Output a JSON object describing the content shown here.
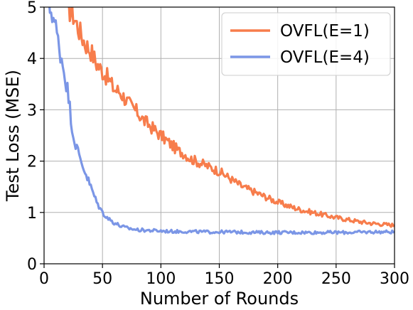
{
  "chart_data": {
    "type": "line",
    "xlabel": "Number of Rounds",
    "ylabel": "Test Loss (MSE)",
    "xlim": [
      0,
      300
    ],
    "ylim": [
      0,
      5
    ],
    "x_ticks": [
      "0",
      "50",
      "100",
      "150",
      "200",
      "250",
      "300"
    ],
    "y_ticks": [
      "0",
      "1",
      "2",
      "3",
      "4",
      "5"
    ],
    "grid": true,
    "legend_position": "top-right",
    "series": [
      {
        "name": "OVFL(E=1)",
        "color": "#f77d4c",
        "x": [
          20,
          25,
          30,
          35,
          40,
          45,
          50,
          55,
          60,
          65,
          70,
          75,
          80,
          85,
          90,
          95,
          100,
          105,
          110,
          115,
          120,
          125,
          130,
          135,
          140,
          145,
          150,
          160,
          170,
          180,
          190,
          200,
          210,
          220,
          230,
          240,
          250,
          260,
          270,
          280,
          290,
          300
        ],
        "y": [
          5.0,
          4.85,
          4.55,
          4.3,
          4.15,
          3.9,
          3.75,
          3.6,
          3.4,
          3.35,
          3.2,
          3.05,
          2.95,
          2.8,
          2.7,
          2.6,
          2.5,
          2.4,
          2.3,
          2.2,
          2.15,
          2.05,
          2.0,
          1.95,
          1.9,
          1.85,
          1.8,
          1.65,
          1.5,
          1.4,
          1.3,
          1.2,
          1.12,
          1.05,
          1.0,
          0.95,
          0.9,
          0.86,
          0.82,
          0.79,
          0.77,
          0.75
        ]
      },
      {
        "name": "OVFL(E=4)",
        "color": "#7b96e6",
        "x": [
          4,
          7,
          10,
          13,
          16,
          20,
          25,
          30,
          35,
          40,
          45,
          50,
          55,
          60,
          65,
          70,
          75,
          80,
          90,
          100,
          110,
          120,
          140,
          160,
          180,
          200,
          220,
          240,
          260,
          280,
          300
        ],
        "y": [
          5.0,
          4.9,
          4.6,
          4.2,
          3.9,
          3.4,
          2.5,
          2.1,
          1.8,
          1.5,
          1.2,
          1.0,
          0.88,
          0.8,
          0.74,
          0.7,
          0.68,
          0.66,
          0.65,
          0.64,
          0.63,
          0.63,
          0.62,
          0.62,
          0.61,
          0.61,
          0.61,
          0.61,
          0.61,
          0.62,
          0.62
        ]
      }
    ]
  }
}
